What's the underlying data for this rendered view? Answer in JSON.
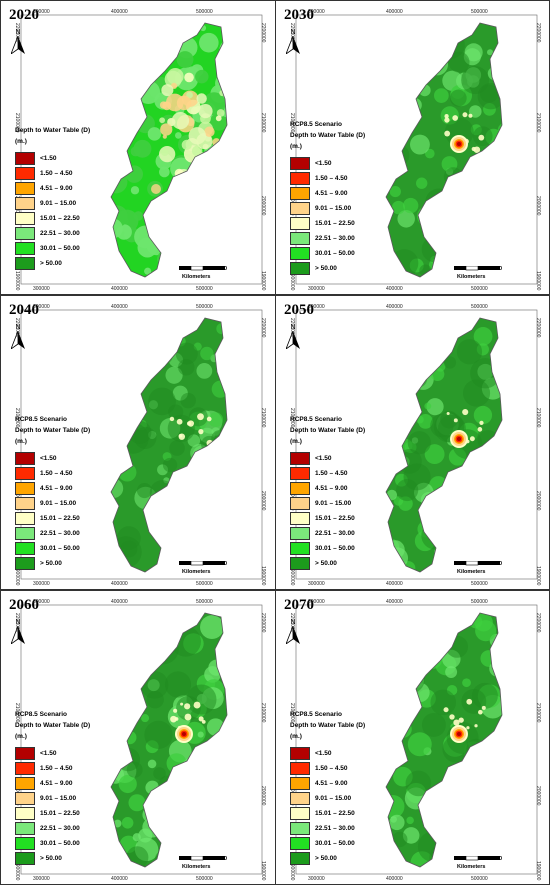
{
  "panels": [
    {
      "year": "2020",
      "scenario": "",
      "heat": 0,
      "light": 1
    },
    {
      "year": "2030",
      "scenario": "RCP8.5 Scenario",
      "heat": 1,
      "light": 0.3
    },
    {
      "year": "2040",
      "scenario": "RCP8.5 Scenario",
      "heat": 0,
      "light": 0.1
    },
    {
      "year": "2050",
      "scenario": "RCP8.5 Scenario",
      "heat": 1,
      "light": 0.3
    },
    {
      "year": "2060",
      "scenario": "RCP8.5 Scenario",
      "heat": 1,
      "light": 0.45
    },
    {
      "year": "2070",
      "scenario": "RCP8.5 Scenario",
      "heat": 1,
      "light": 0.35
    }
  ],
  "legend": {
    "title_line1": "Depth to Water Table (D)",
    "title_line2": "(m.)",
    "classes": [
      {
        "label": "<1.50",
        "color": "#b30000"
      },
      {
        "label": "1.50 – 4.50",
        "color": "#ff2a00"
      },
      {
        "label": "4.51 – 9.00",
        "color": "#ffa500"
      },
      {
        "label": "9.01 – 15.00",
        "color": "#ffd38a"
      },
      {
        "label": "15.01 – 22.50",
        "color": "#ffffc6"
      },
      {
        "label": "22.51 – 30.00",
        "color": "#7be87b"
      },
      {
        "label": "30.01 – 50.00",
        "color": "#22e022"
      },
      {
        "label": "> 50.00",
        "color": "#1c9b1c"
      }
    ]
  },
  "north_label": "N",
  "scale": {
    "ticks": [
      "0",
      "25",
      "50"
    ],
    "unit": "Kilometers"
  },
  "x_ticks": [
    "300000",
    "400000",
    "500000"
  ],
  "y_ticks": [
    "2200000",
    "2100000",
    "2000000",
    "1900000"
  ]
}
